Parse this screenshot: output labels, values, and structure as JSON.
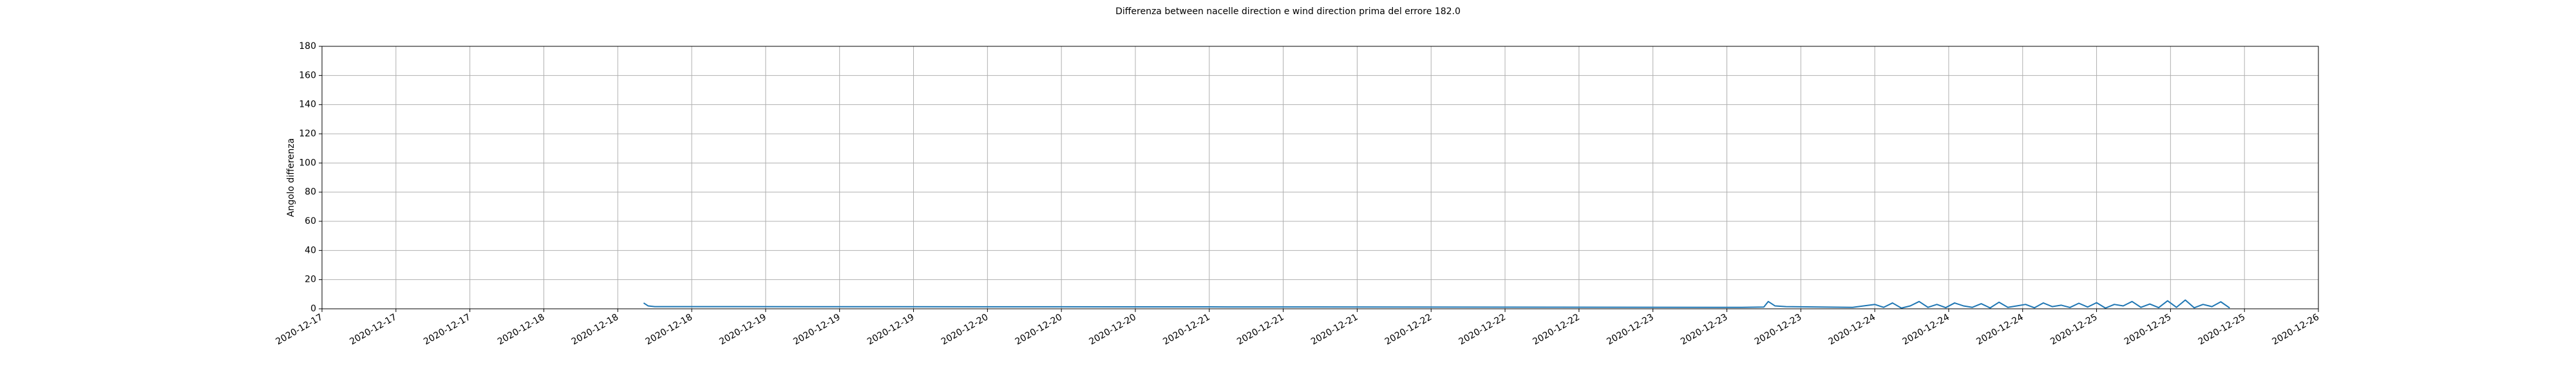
{
  "chart_data": {
    "type": "line",
    "title": "Differenza between nacelle direction e wind direction prima del errore 182.0",
    "y_label": "Angolo differenza",
    "x": [
      1.45,
      1.47,
      1.5,
      4.0,
      6.4,
      6.5,
      6.52,
      6.55,
      6.6,
      6.9,
      7,
      7.04,
      7.08,
      7.12,
      7.16,
      7.2,
      7.24,
      7.28,
      7.32,
      7.36,
      7.4,
      7.44,
      7.48,
      7.52,
      7.56,
      7.6,
      7.64,
      7.68,
      7.72,
      7.76,
      7.8,
      7.84,
      7.88,
      7.92,
      7.96,
      8,
      8.04,
      8.08,
      8.12,
      8.16,
      8.2,
      8.24,
      8.28,
      8.32,
      8.36,
      8.4,
      8.44,
      8.48,
      8.52,
      8.56,
      8.6
    ],
    "series": [
      {
        "color": "#1f77b4",
        "values": [
          4,
          2,
          1.5,
          1.3,
          1.0,
          1.2,
          5,
          2,
          1.5,
          1.0,
          3,
          1,
          4,
          0.5,
          2,
          5,
          1,
          3,
          0.8,
          4,
          2,
          1,
          3.5,
          0.6,
          4.5,
          1,
          2,
          3,
          0.7,
          4,
          1.5,
          2.5,
          0.9,
          3.8,
          1.2,
          4.2,
          0.5,
          3,
          2,
          5,
          1,
          3.3,
          0.8,
          5.5,
          1,
          6,
          0.7,
          3,
          1.5,
          4.8,
          0.6
        ]
      }
    ],
    "xlim": [
      0,
      9
    ],
    "xticks": [
      {
        "value": 0,
        "label": "2020-12-17"
      },
      {
        "value": 0.3333,
        "label": "2020-12-17"
      },
      {
        "value": 0.6667,
        "label": "2020-12-17"
      },
      {
        "value": 1,
        "label": "2020-12-18"
      },
      {
        "value": 1.3333,
        "label": "2020-12-18"
      },
      {
        "value": 1.6667,
        "label": "2020-12-18"
      },
      {
        "value": 2,
        "label": "2020-12-19"
      },
      {
        "value": 2.3333,
        "label": "2020-12-19"
      },
      {
        "value": 2.6667,
        "label": "2020-12-19"
      },
      {
        "value": 3,
        "label": "2020-12-20"
      },
      {
        "value": 3.3333,
        "label": "2020-12-20"
      },
      {
        "value": 3.6667,
        "label": "2020-12-20"
      },
      {
        "value": 4,
        "label": "2020-12-21"
      },
      {
        "value": 4.3333,
        "label": "2020-12-21"
      },
      {
        "value": 4.6667,
        "label": "2020-12-21"
      },
      {
        "value": 5,
        "label": "2020-12-22"
      },
      {
        "value": 5.3333,
        "label": "2020-12-22"
      },
      {
        "value": 5.6667,
        "label": "2020-12-22"
      },
      {
        "value": 6,
        "label": "2020-12-23"
      },
      {
        "value": 6.3333,
        "label": "2020-12-23"
      },
      {
        "value": 6.6667,
        "label": "2020-12-23"
      },
      {
        "value": 7,
        "label": "2020-12-24"
      },
      {
        "value": 7.3333,
        "label": "2020-12-24"
      },
      {
        "value": 7.6667,
        "label": "2020-12-24"
      },
      {
        "value": 8,
        "label": "2020-12-25"
      },
      {
        "value": 8.3333,
        "label": "2020-12-25"
      },
      {
        "value": 8.6667,
        "label": "2020-12-25"
      },
      {
        "value": 9,
        "label": "2020-12-26"
      }
    ],
    "ylim": [
      0,
      180
    ],
    "yticks": [
      0,
      20,
      40,
      60,
      80,
      100,
      120,
      140,
      160,
      180
    ],
    "grid": true
  }
}
